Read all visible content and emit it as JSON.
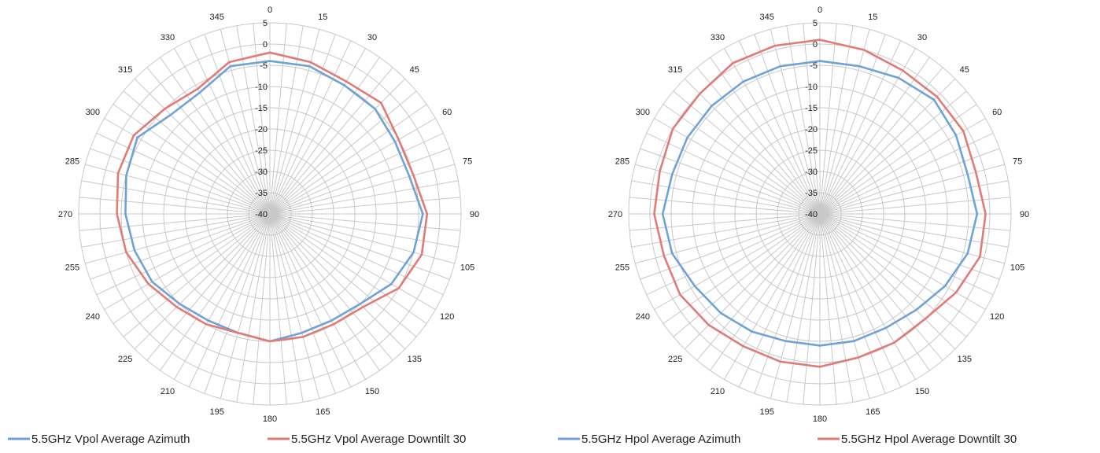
{
  "chart_data": [
    {
      "type": "line",
      "subtype": "polar",
      "angle_labels": [
        "0",
        "15",
        "30",
        "45",
        "60",
        "75",
        "90",
        "105",
        "120",
        "135",
        "150",
        "165",
        "180",
        "195",
        "210",
        "225",
        "240",
        "255",
        "270",
        "285",
        "300",
        "315",
        "330",
        "345"
      ],
      "radial_ticks": [
        5,
        0,
        -5,
        -10,
        -15,
        -20,
        -25,
        -30,
        -35,
        -40
      ],
      "rlim": [
        -40,
        5
      ],
      "grid": true,
      "legend_position": "bottom",
      "colors": {
        "series1": "#6fa3d8",
        "series2": "#e07b76"
      },
      "series": [
        {
          "name": "5.5GHz Vpol Average Azimuth",
          "angles": [
            0,
            15,
            30,
            45,
            60,
            75,
            90,
            105,
            120,
            135,
            150,
            165,
            180,
            195,
            210,
            225,
            240,
            255,
            270,
            285,
            300,
            315,
            330,
            345
          ],
          "values": [
            -4,
            -4,
            -5,
            -5,
            -6,
            -6,
            -4,
            -5,
            -7,
            -10,
            -11,
            -11,
            -10,
            -11,
            -11,
            -10,
            -8,
            -7,
            -6,
            -5,
            -4,
            -7,
            -7,
            -4
          ]
        },
        {
          "name": "5.5GHz Vpol Average Downtilt 30",
          "angles": [
            0,
            15,
            30,
            45,
            60,
            75,
            90,
            105,
            120,
            135,
            150,
            165,
            180,
            195,
            210,
            225,
            240,
            255,
            270,
            285,
            300,
            315,
            330,
            345
          ],
          "values": [
            -2,
            -3,
            -4,
            -3,
            -5,
            -5,
            -3,
            -3,
            -5,
            -9,
            -10,
            -10,
            -10,
            -11,
            -10,
            -9,
            -7,
            -5,
            -4,
            -3,
            -3,
            -5,
            -6,
            -3
          ]
        }
      ]
    },
    {
      "type": "line",
      "subtype": "polar",
      "angle_labels": [
        "0",
        "15",
        "30",
        "45",
        "60",
        "75",
        "90",
        "105",
        "120",
        "135",
        "150",
        "165",
        "180",
        "195",
        "210",
        "225",
        "240",
        "255",
        "270",
        "285",
        "300",
        "315",
        "330",
        "345"
      ],
      "radial_ticks": [
        5,
        0,
        -5,
        -10,
        -15,
        -20,
        -25,
        -30,
        -35,
        -40
      ],
      "rlim": [
        -40,
        5
      ],
      "grid": true,
      "legend_position": "bottom",
      "colors": {
        "series1": "#6fa3d8",
        "series2": "#e07b76"
      },
      "series": [
        {
          "name": "5.5GHz Hpol Average Azimuth",
          "angles": [
            0,
            15,
            30,
            45,
            60,
            75,
            90,
            105,
            120,
            135,
            150,
            165,
            180,
            195,
            210,
            225,
            240,
            255,
            270,
            285,
            300,
            315,
            330,
            345
          ],
          "values": [
            -4,
            -4,
            -3,
            -2,
            -3,
            -4,
            -3,
            -4,
            -6,
            -8,
            -9,
            -9,
            -9,
            -9,
            -8,
            -7,
            -6,
            -4,
            -3,
            -4,
            -4,
            -4,
            -4,
            -4
          ]
        },
        {
          "name": "5.5GHz Hpol Average Downtilt 30",
          "angles": [
            0,
            15,
            30,
            45,
            60,
            75,
            90,
            105,
            120,
            135,
            150,
            165,
            180,
            195,
            210,
            225,
            240,
            255,
            270,
            285,
            300,
            315,
            330,
            345
          ],
          "values": [
            1,
            0,
            -1,
            -1,
            -1,
            -2,
            -1,
            -1,
            -3,
            -5,
            -5,
            -5,
            -4,
            -4,
            -4,
            -3,
            -2,
            -2,
            -1,
            -1,
            0,
            0,
            1,
            1
          ]
        }
      ]
    }
  ]
}
